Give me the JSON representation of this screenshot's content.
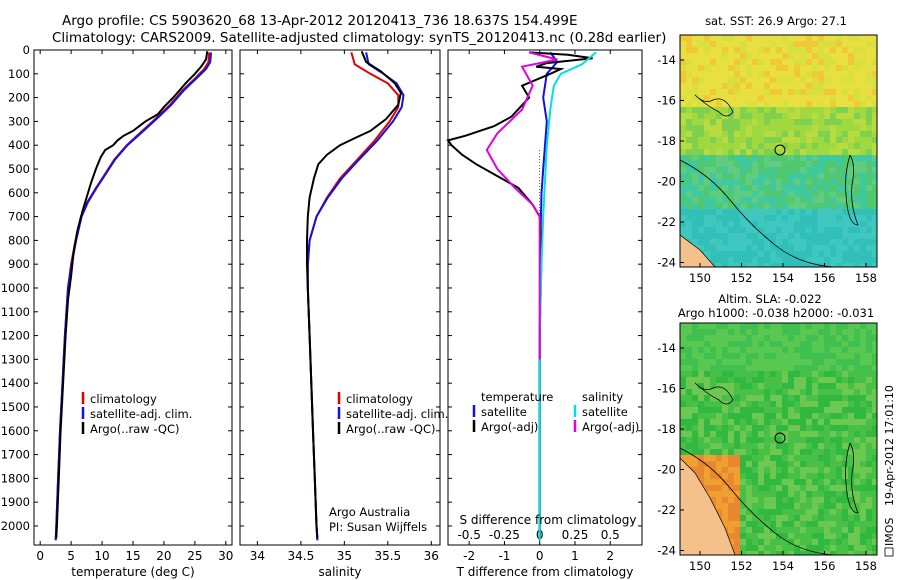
{
  "header": {
    "line1": "Argo profile: CS 5903620_68 13-Apr-2012 20120413_736 18.637S 154.499E",
    "line2": "Climatology: CARS2009. Satellite-adjusted climatology: synTS_20120413.nc (0.28d earlier)"
  },
  "colors": {
    "climatology": "#e00000",
    "satellite": "#1010e0",
    "argo": "#000000",
    "sal_satellite": "#00e0e0",
    "sal_argo": "#e000e0",
    "land": "#f4c08c"
  },
  "chart_data": [
    {
      "type": "line",
      "id": "temperature",
      "xlabel": "temperature (deg C)",
      "ylabel": "",
      "xlim": [
        -1,
        31
      ],
      "ylim": [
        2080,
        0
      ],
      "xticks": [
        "0",
        "5",
        "10",
        "15",
        "20",
        "25",
        "30"
      ],
      "xtick_values": [
        0,
        5,
        10,
        15,
        20,
        25,
        30
      ],
      "yticks": [
        "0",
        "100",
        "200",
        "300",
        "400",
        "500",
        "600",
        "700",
        "800",
        "900",
        "1000",
        "1100",
        "1200",
        "1300",
        "1400",
        "1500",
        "1600",
        "1700",
        "1800",
        "1900",
        "2000"
      ],
      "ytick_values": [
        0,
        100,
        200,
        300,
        400,
        500,
        600,
        700,
        800,
        900,
        1000,
        1100,
        1200,
        1300,
        1400,
        1500,
        1600,
        1700,
        1800,
        1900,
        2000
      ],
      "legend": [
        "climatology",
        "satellite-adj. clim.",
        "Argo(..raw -QC)"
      ],
      "series": [
        {
          "name": "climatology",
          "color": "climatology",
          "points": [
            [
              27.3,
              10
            ],
            [
              27.2,
              50
            ],
            [
              26.5,
              80
            ],
            [
              25,
              120
            ],
            [
              23,
              170
            ],
            [
              21,
              230
            ],
            [
              19,
              280
            ],
            [
              16.5,
              340
            ],
            [
              14,
              400
            ],
            [
              12,
              460
            ],
            [
              10.5,
              520
            ],
            [
              9,
              580
            ],
            [
              7.6,
              640
            ],
            [
              6.6,
              700
            ],
            [
              5.7,
              800
            ],
            [
              5,
              900
            ],
            [
              4.5,
              1000
            ],
            [
              4,
              1200
            ],
            [
              3.6,
              1400
            ],
            [
              3.2,
              1600
            ],
            [
              2.9,
              1800
            ],
            [
              2.6,
              2000
            ],
            [
              2.5,
              2060
            ]
          ]
        },
        {
          "name": "satellite-adj. clim.",
          "color": "satellite",
          "points": [
            [
              27.6,
              10
            ],
            [
              27.5,
              50
            ],
            [
              26.8,
              80
            ],
            [
              25.2,
              120
            ],
            [
              23.2,
              170
            ],
            [
              21.2,
              230
            ],
            [
              19.2,
              280
            ],
            [
              16.7,
              340
            ],
            [
              14.1,
              400
            ],
            [
              12.1,
              460
            ],
            [
              10.6,
              520
            ],
            [
              9.1,
              580
            ],
            [
              7.7,
              640
            ],
            [
              6.7,
              700
            ],
            [
              5.8,
              800
            ],
            [
              5.1,
              900
            ],
            [
              4.5,
              1000
            ],
            [
              4,
              1200
            ],
            [
              3.6,
              1400
            ],
            [
              3.2,
              1600
            ],
            [
              2.9,
              1800
            ],
            [
              2.6,
              2000
            ],
            [
              2.5,
              2060
            ]
          ]
        },
        {
          "name": "Argo(..raw -QC)",
          "color": "argo",
          "points": [
            [
              27,
              5
            ],
            [
              26.8,
              40
            ],
            [
              26,
              70
            ],
            [
              25,
              100
            ],
            [
              23.5,
              140
            ],
            [
              21.5,
              200
            ],
            [
              20,
              240
            ],
            [
              19,
              270
            ],
            [
              17,
              300
            ],
            [
              15,
              340
            ],
            [
              13.5,
              360
            ],
            [
              12.5,
              380
            ],
            [
              11.8,
              400
            ],
            [
              10.5,
              420
            ],
            [
              9.8,
              450
            ],
            [
              9,
              500
            ],
            [
              8.2,
              560
            ],
            [
              7.5,
              620
            ],
            [
              6.8,
              680
            ],
            [
              6,
              760
            ],
            [
              5.4,
              850
            ],
            [
              5,
              950
            ],
            [
              4.5,
              1050
            ],
            [
              4.1,
              1200
            ],
            [
              3.7,
              1400
            ],
            [
              3.3,
              1600
            ],
            [
              3,
              1800
            ],
            [
              2.7,
              2000
            ],
            [
              2.6,
              2050
            ]
          ]
        }
      ]
    },
    {
      "type": "line",
      "id": "salinity",
      "xlabel": "salinity",
      "xlim": [
        33.8,
        36.1
      ],
      "ylim": [
        2080,
        0
      ],
      "xticks": [
        "34",
        "34.5",
        "35",
        "35.5",
        "36"
      ],
      "xtick_values": [
        34,
        34.5,
        35,
        35.5,
        36
      ],
      "legend": [
        "climatology",
        "satellite-adj. clim.",
        "Argo(..raw -QC)"
      ],
      "series": [
        {
          "name": "climatology",
          "color": "climatology",
          "points": [
            [
              35.08,
              10
            ],
            [
              35.12,
              60
            ],
            [
              35.3,
              100
            ],
            [
              35.5,
              140
            ],
            [
              35.62,
              190
            ],
            [
              35.62,
              240
            ],
            [
              35.52,
              300
            ],
            [
              35.35,
              380
            ],
            [
              35.15,
              460
            ],
            [
              34.95,
              540
            ],
            [
              34.8,
              620
            ],
            [
              34.68,
              700
            ],
            [
              34.6,
              800
            ],
            [
              34.58,
              900
            ],
            [
              34.58,
              1000
            ],
            [
              34.6,
              1200
            ],
            [
              34.62,
              1400
            ],
            [
              34.64,
              1600
            ],
            [
              34.66,
              1800
            ],
            [
              34.68,
              2000
            ],
            [
              34.69,
              2060
            ]
          ]
        },
        {
          "name": "satellite-adj. clim.",
          "color": "satellite",
          "points": [
            [
              35.25,
              10
            ],
            [
              35.28,
              60
            ],
            [
              35.45,
              100
            ],
            [
              35.6,
              140
            ],
            [
              35.68,
              190
            ],
            [
              35.66,
              240
            ],
            [
              35.56,
              300
            ],
            [
              35.38,
              380
            ],
            [
              35.17,
              460
            ],
            [
              34.97,
              540
            ],
            [
              34.81,
              620
            ],
            [
              34.68,
              700
            ],
            [
              34.6,
              800
            ],
            [
              34.58,
              900
            ],
            [
              34.58,
              1000
            ],
            [
              34.6,
              1200
            ],
            [
              34.62,
              1400
            ],
            [
              34.64,
              1600
            ],
            [
              34.66,
              1800
            ],
            [
              34.68,
              2000
            ],
            [
              34.69,
              2060
            ]
          ]
        },
        {
          "name": "Argo(..raw -QC)",
          "color": "argo",
          "points": [
            [
              35.2,
              5
            ],
            [
              35.25,
              50
            ],
            [
              35.42,
              90
            ],
            [
              35.58,
              140
            ],
            [
              35.65,
              180
            ],
            [
              35.62,
              230
            ],
            [
              35.48,
              290
            ],
            [
              35.3,
              340
            ],
            [
              35.12,
              370
            ],
            [
              34.95,
              400
            ],
            [
              34.8,
              440
            ],
            [
              34.7,
              480
            ],
            [
              34.65,
              540
            ],
            [
              34.6,
              620
            ],
            [
              34.58,
              700
            ],
            [
              34.57,
              800
            ],
            [
              34.57,
              900
            ],
            [
              34.58,
              1000
            ],
            [
              34.6,
              1200
            ],
            [
              34.62,
              1400
            ],
            [
              34.64,
              1600
            ],
            [
              34.66,
              1800
            ],
            [
              34.68,
              2000
            ],
            [
              34.69,
              2050
            ]
          ]
        }
      ]
    },
    {
      "type": "line",
      "id": "difference",
      "xlabel": "T difference from climatology",
      "xlabel_top": "S difference from climatology",
      "xlim": [
        -2.6,
        2.9
      ],
      "ylim": [
        2080,
        0
      ],
      "xticks": [
        "-2",
        "-1",
        "0",
        "1",
        "2"
      ],
      "xtick_values": [
        -2,
        -1,
        0,
        1,
        2
      ],
      "xticks_top": [
        "-0.5",
        "-0.25",
        "0",
        "0.25",
        "0.5"
      ],
      "xtick_top_positions": [
        -2,
        -1,
        0,
        1,
        2
      ],
      "legend_temperature": [
        "temperature",
        "satellite",
        "Argo(-adj)"
      ],
      "legend_salinity": [
        "salinity",
        "satellite",
        "Argo(-adj)"
      ],
      "series": [
        {
          "name": "temperature satellite",
          "color": "satellite",
          "points": [
            [
              0.3,
              10
            ],
            [
              0.5,
              50
            ],
            [
              0.2,
              100
            ],
            [
              0.1,
              200
            ],
            [
              0.2,
              300
            ],
            [
              0.15,
              400
            ],
            [
              0.1,
              500
            ],
            [
              0.05,
              600
            ],
            [
              0.02,
              800
            ],
            [
              0,
              1200
            ],
            [
              0,
              1600
            ],
            [
              0,
              2000
            ],
            [
              0,
              2060
            ]
          ]
        },
        {
          "name": "temperature Argo(-adj)",
          "color": "argo",
          "points": [
            [
              -0.3,
              10
            ],
            [
              0.8,
              20
            ],
            [
              1.5,
              35
            ],
            [
              0.2,
              55
            ],
            [
              -0.1,
              70
            ],
            [
              0.6,
              80
            ],
            [
              0.3,
              100
            ],
            [
              -0.5,
              150
            ],
            [
              -0.3,
              200
            ],
            [
              -0.8,
              280
            ],
            [
              -1.3,
              320
            ],
            [
              -2.1,
              360
            ],
            [
              -2.6,
              380
            ],
            [
              -2.5,
              400
            ],
            [
              -2.2,
              440
            ],
            [
              -1.8,
              480
            ],
            [
              -1.2,
              530
            ],
            [
              -0.6,
              580
            ],
            [
              -0.2,
              650
            ],
            [
              0,
              700
            ],
            [
              0.05,
              800
            ],
            [
              0.03,
              1000
            ],
            [
              0,
              1200
            ],
            [
              0,
              1600
            ],
            [
              0,
              2000
            ],
            [
              0,
              2050
            ]
          ]
        },
        {
          "name": "salinity satellite",
          "color": "sal_satellite",
          "points": [
            [
              1.6,
              10
            ],
            [
              1.2,
              60
            ],
            [
              0.6,
              100
            ],
            [
              0.4,
              150
            ],
            [
              0.3,
              250
            ],
            [
              0.2,
              400
            ],
            [
              0.15,
              550
            ],
            [
              0.1,
              700
            ],
            [
              0.05,
              900
            ],
            [
              0,
              1200
            ],
            [
              0,
              1600
            ],
            [
              0,
              2060
            ]
          ]
        },
        {
          "name": "salinity Argo(-adj)",
          "color": "sal_argo",
          "points": [
            [
              -0.3,
              10
            ],
            [
              0.5,
              40
            ],
            [
              -0.5,
              70
            ],
            [
              -0.2,
              150
            ],
            [
              -0.5,
              250
            ],
            [
              -1.2,
              350
            ],
            [
              -1.5,
              420
            ],
            [
              -1.2,
              500
            ],
            [
              -0.7,
              580
            ],
            [
              -0.2,
              650
            ],
            [
              0,
              700
            ],
            [
              0,
              800
            ],
            [
              0,
              1000
            ],
            [
              0,
              1300
            ]
          ]
        }
      ],
      "annotations": [
        "Argo Australia",
        "PI: Susan Wijffels"
      ]
    },
    {
      "type": "heatmap",
      "id": "sst-map",
      "title": "sat. SST: 26.9  Argo: 27.1",
      "xticks": [
        "150",
        "152",
        "154",
        "156",
        "158"
      ],
      "yticks": [
        "-14",
        "-16",
        "-18",
        "-20",
        "-22",
        "-24"
      ]
    },
    {
      "type": "heatmap",
      "id": "sla-map",
      "title_line1": "Altim. SLA: -0.022",
      "title_line2": "Argo h1000: -0.038  h2000: -0.031",
      "xticks": [
        "150",
        "152",
        "154",
        "156",
        "158"
      ],
      "yticks": [
        "-14",
        "-16",
        "-18",
        "-20",
        "-22",
        "-24"
      ]
    }
  ],
  "footer": {
    "timestamp": "19-Apr-2012 17:01:10",
    "imos": "IMOS"
  }
}
